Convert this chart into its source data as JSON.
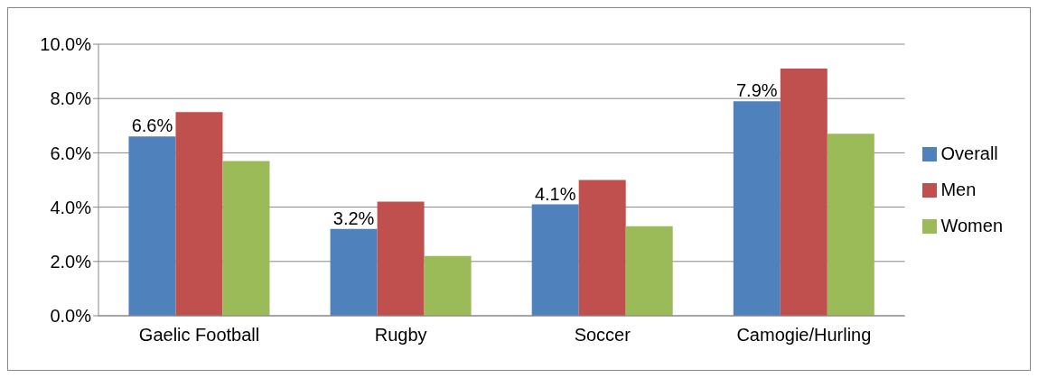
{
  "chart_data": {
    "type": "bar",
    "categories": [
      "Gaelic Football",
      "Rugby",
      "Soccer",
      "Camogie/Hurling"
    ],
    "series": [
      {
        "name": "Overall",
        "color": "#4f81bd",
        "values": [
          6.6,
          3.2,
          4.1,
          7.9
        ],
        "value_labels": [
          "6.6%",
          "3.2%",
          "4.1%",
          "7.9%"
        ]
      },
      {
        "name": "Men",
        "color": "#c0504d",
        "values": [
          7.5,
          4.2,
          5.0,
          9.1
        ]
      },
      {
        "name": "Women",
        "color": "#9bbb59",
        "values": [
          5.7,
          2.2,
          3.3,
          6.7
        ]
      }
    ],
    "ylim": [
      0,
      10
    ],
    "yticks": [
      {
        "value": 0,
        "label": "0.0%"
      },
      {
        "value": 2,
        "label": "2.0%"
      },
      {
        "value": 4,
        "label": "4.0%"
      },
      {
        "value": 6,
        "label": "6.0%"
      },
      {
        "value": 8,
        "label": "8.0%"
      },
      {
        "value": 10,
        "label": "10.0%"
      }
    ],
    "grid": "y",
    "legend": "right"
  }
}
